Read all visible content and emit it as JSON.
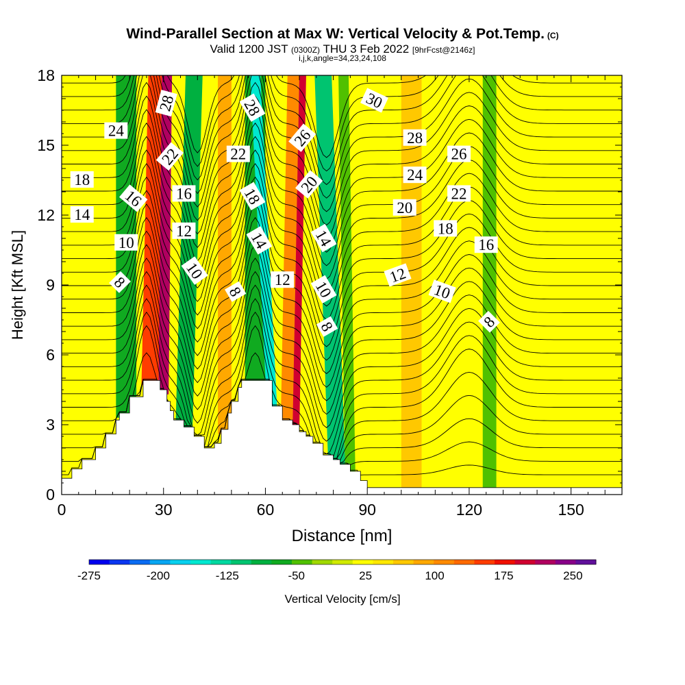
{
  "header": {
    "title": "Wind-Parallel Section at Max W: Vertical Velocity & Pot.Temp.",
    "copyright": "(C)",
    "valid_main": "Valid 1200 JST",
    "valid_utc": "(0300Z)",
    "valid_date": "THU 3 Feb 2022",
    "forecast": "[9hrFcst@2146z]",
    "grid_info": "i,j,k,angle=34,23,24,108"
  },
  "chart_data": {
    "type": "heatmap",
    "xlabel": "Distance [nm]",
    "ylabel": "Height [Kft MSL]",
    "xlim": [
      0,
      165
    ],
    "ylim": [
      0,
      18
    ],
    "x_ticks": [
      0,
      30,
      60,
      90,
      120,
      150
    ],
    "y_ticks": [
      0,
      3,
      6,
      9,
      12,
      15,
      18
    ],
    "colorbar": {
      "label": "Vertical Velocity [cm/s]",
      "tick_labels": [
        -275,
        -200,
        -125,
        -50,
        25,
        100,
        175,
        250
      ],
      "range": [
        -275,
        275
      ],
      "colors": [
        "#0000ee",
        "#0a36f0",
        "#0a6cf2",
        "#08a6f2",
        "#07d0ee",
        "#00e8d0",
        "#00d8a0",
        "#00c470",
        "#00b040",
        "#10aa20",
        "#50c000",
        "#a0d800",
        "#d0ea00",
        "#ffff00",
        "#ffe800",
        "#ffc800",
        "#ffa800",
        "#ff8a00",
        "#ff6a00",
        "#ff3c00",
        "#f01000",
        "#d00030",
        "#b00060",
        "#880088",
        "#60109a"
      ]
    },
    "terrain_kft": [
      [
        0,
        0.7
      ],
      [
        3,
        0.7
      ],
      [
        3,
        1.1
      ],
      [
        6,
        1.1
      ],
      [
        6,
        1.5
      ],
      [
        10,
        1.5
      ],
      [
        10,
        2.0
      ],
      [
        13,
        2.0
      ],
      [
        13,
        2.6
      ],
      [
        16,
        2.6
      ],
      [
        16,
        3.2
      ],
      [
        17,
        3.2
      ],
      [
        17,
        3.5
      ],
      [
        20,
        3.5
      ],
      [
        20,
        4.2
      ],
      [
        24,
        4.2
      ],
      [
        24,
        4.9
      ],
      [
        29,
        4.9
      ],
      [
        29,
        4.5
      ],
      [
        31,
        4.5
      ],
      [
        31,
        4.0
      ],
      [
        32,
        4.0
      ],
      [
        32,
        3.6
      ],
      [
        33,
        3.6
      ],
      [
        33,
        3.2
      ],
      [
        36,
        3.2
      ],
      [
        36,
        2.9
      ],
      [
        39,
        2.9
      ],
      [
        39,
        2.5
      ],
      [
        42,
        2.5
      ],
      [
        42,
        2.0
      ],
      [
        45,
        2.0
      ],
      [
        45,
        2.2
      ],
      [
        47,
        2.2
      ],
      [
        47,
        2.8
      ],
      [
        49,
        2.8
      ],
      [
        49,
        3.5
      ],
      [
        50,
        3.5
      ],
      [
        50,
        4.0
      ],
      [
        52,
        4.0
      ],
      [
        52,
        4.6
      ],
      [
        53,
        4.6
      ],
      [
        53,
        4.9
      ],
      [
        62,
        4.9
      ],
      [
        62,
        3.8
      ],
      [
        65,
        3.8
      ],
      [
        65,
        3.2
      ],
      [
        68,
        3.2
      ],
      [
        68,
        3.0
      ],
      [
        70,
        3.0
      ],
      [
        70,
        2.7
      ],
      [
        72,
        2.7
      ],
      [
        72,
        2.5
      ],
      [
        74,
        2.5
      ],
      [
        74,
        2.2
      ],
      [
        77,
        2.2
      ],
      [
        77,
        1.7
      ],
      [
        80,
        1.7
      ],
      [
        80,
        1.5
      ],
      [
        82,
        1.5
      ],
      [
        82,
        1.3
      ],
      [
        85,
        1.3
      ],
      [
        85,
        1.0
      ],
      [
        88,
        1.0
      ],
      [
        88,
        0.6
      ],
      [
        90,
        0.6
      ],
      [
        90,
        0.3
      ],
      [
        165,
        0.3
      ]
    ],
    "vv_bands": [
      {
        "x_base": 19,
        "x_top": 19,
        "width": 6,
        "value": -70
      },
      {
        "x_base": 26,
        "x_top": 28,
        "width": 5,
        "value": 150
      },
      {
        "x_base": 30,
        "x_top": 31,
        "width": 3,
        "value": 230
      },
      {
        "x_base": 36,
        "x_top": 39,
        "width": 5,
        "value": -90
      },
      {
        "x_base": 48,
        "x_top": 48,
        "width": 4,
        "value": 80
      },
      {
        "x_base": 57,
        "x_top": 57,
        "width": 6,
        "value": -70
      },
      {
        "x_base": 62,
        "x_top": 57,
        "width": 3,
        "value": -160
      },
      {
        "x_base": 67,
        "x_top": 69,
        "width": 5,
        "value": 110
      },
      {
        "x_base": 69,
        "x_top": 71,
        "width": 2,
        "value": 190
      },
      {
        "x_base": 81,
        "x_top": 77,
        "width": 5,
        "value": -100
      },
      {
        "x_base": 85,
        "x_top": 83,
        "width": 3,
        "value": -50
      },
      {
        "x_base": 103,
        "x_top": 103,
        "width": 6,
        "value": 60
      },
      {
        "x_base": 126,
        "x_top": 126,
        "width": 4,
        "value": -50
      }
    ],
    "theta_contours": {
      "count": 30,
      "spacing_kft": 0.58,
      "base_kft": 0.85,
      "features": [
        {
          "x": 25,
          "value": 3.5,
          "sigma": 4
        },
        {
          "x": 40,
          "value": -3.0,
          "sigma": 4
        },
        {
          "x": 57,
          "value": 3.5,
          "sigma": 4
        },
        {
          "x": 78,
          "value": -3.2,
          "sigma": 5
        },
        {
          "x": 120,
          "value": 2.5,
          "sigma": 9
        }
      ]
    },
    "contour_labels": [
      {
        "text": "24",
        "x": 16,
        "y": 15.6,
        "angle": 0
      },
      {
        "text": "18",
        "x": 6,
        "y": 13.5,
        "angle": 0
      },
      {
        "text": "14",
        "x": 6,
        "y": 12.0,
        "angle": 0
      },
      {
        "text": "16",
        "x": 21,
        "y": 12.7,
        "angle": 40
      },
      {
        "text": "10",
        "x": 19,
        "y": 10.8,
        "angle": 0
      },
      {
        "text": "8",
        "x": 17,
        "y": 9.1,
        "angle": 45
      },
      {
        "text": "28",
        "x": 31,
        "y": 16.8,
        "angle": -75
      },
      {
        "text": "22",
        "x": 32,
        "y": 14.5,
        "angle": -50
      },
      {
        "text": "16",
        "x": 36,
        "y": 12.9,
        "angle": 0
      },
      {
        "text": "12",
        "x": 36,
        "y": 11.3,
        "angle": 0
      },
      {
        "text": "10",
        "x": 39,
        "y": 9.6,
        "angle": 55
      },
      {
        "text": "8",
        "x": 51,
        "y": 8.7,
        "angle": 60
      },
      {
        "text": "22",
        "x": 52,
        "y": 14.6,
        "angle": 0
      },
      {
        "text": "28",
        "x": 56,
        "y": 16.6,
        "angle": 60
      },
      {
        "text": "18",
        "x": 56,
        "y": 12.8,
        "angle": 60
      },
      {
        "text": "14",
        "x": 58,
        "y": 10.9,
        "angle": 60
      },
      {
        "text": "12",
        "x": 65,
        "y": 9.2,
        "angle": 0
      },
      {
        "text": "26",
        "x": 71,
        "y": 15.3,
        "angle": -50
      },
      {
        "text": "20",
        "x": 73,
        "y": 13.3,
        "angle": -50
      },
      {
        "text": "14",
        "x": 77,
        "y": 11.0,
        "angle": 60
      },
      {
        "text": "10",
        "x": 77,
        "y": 8.8,
        "angle": 60
      },
      {
        "text": "8",
        "x": 78,
        "y": 7.2,
        "angle": 60
      },
      {
        "text": "30",
        "x": 92,
        "y": 16.9,
        "angle": 25
      },
      {
        "text": "28",
        "x": 104,
        "y": 15.3,
        "angle": 0
      },
      {
        "text": "24",
        "x": 104,
        "y": 13.7,
        "angle": 0
      },
      {
        "text": "20",
        "x": 101,
        "y": 12.3,
        "angle": 0
      },
      {
        "text": "12",
        "x": 99,
        "y": 9.4,
        "angle": -20
      },
      {
        "text": "26",
        "x": 117,
        "y": 14.6,
        "angle": 0
      },
      {
        "text": "22",
        "x": 117,
        "y": 12.9,
        "angle": 0
      },
      {
        "text": "18",
        "x": 113,
        "y": 11.4,
        "angle": 0
      },
      {
        "text": "10",
        "x": 112,
        "y": 8.7,
        "angle": 20
      },
      {
        "text": "16",
        "x": 125,
        "y": 10.7,
        "angle": 0
      },
      {
        "text": "8",
        "x": 126,
        "y": 7.4,
        "angle": -45
      }
    ]
  }
}
